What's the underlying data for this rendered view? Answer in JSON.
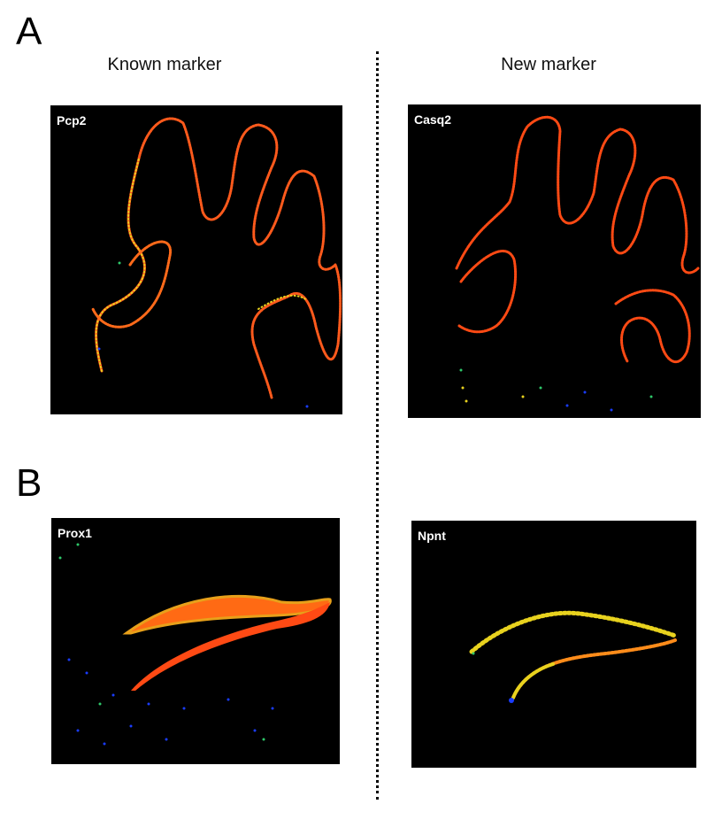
{
  "figure": {
    "panels": [
      {
        "letter": "A"
      },
      {
        "letter": "B"
      }
    ],
    "columns": {
      "left": "Known marker",
      "right": "New marker"
    },
    "images": {
      "a_left": {
        "label": "Pcp2"
      },
      "a_right": {
        "label": "Casq2"
      },
      "b_left": {
        "label": "Prox1"
      },
      "b_right": {
        "label": "Npnt"
      }
    },
    "colors": {
      "background": "#000000",
      "high": "#ff4a14",
      "mid_high": "#ff8c1a",
      "mid": "#e8d21e",
      "low": "#2ec86a",
      "very_low": "#1a3cff"
    }
  }
}
